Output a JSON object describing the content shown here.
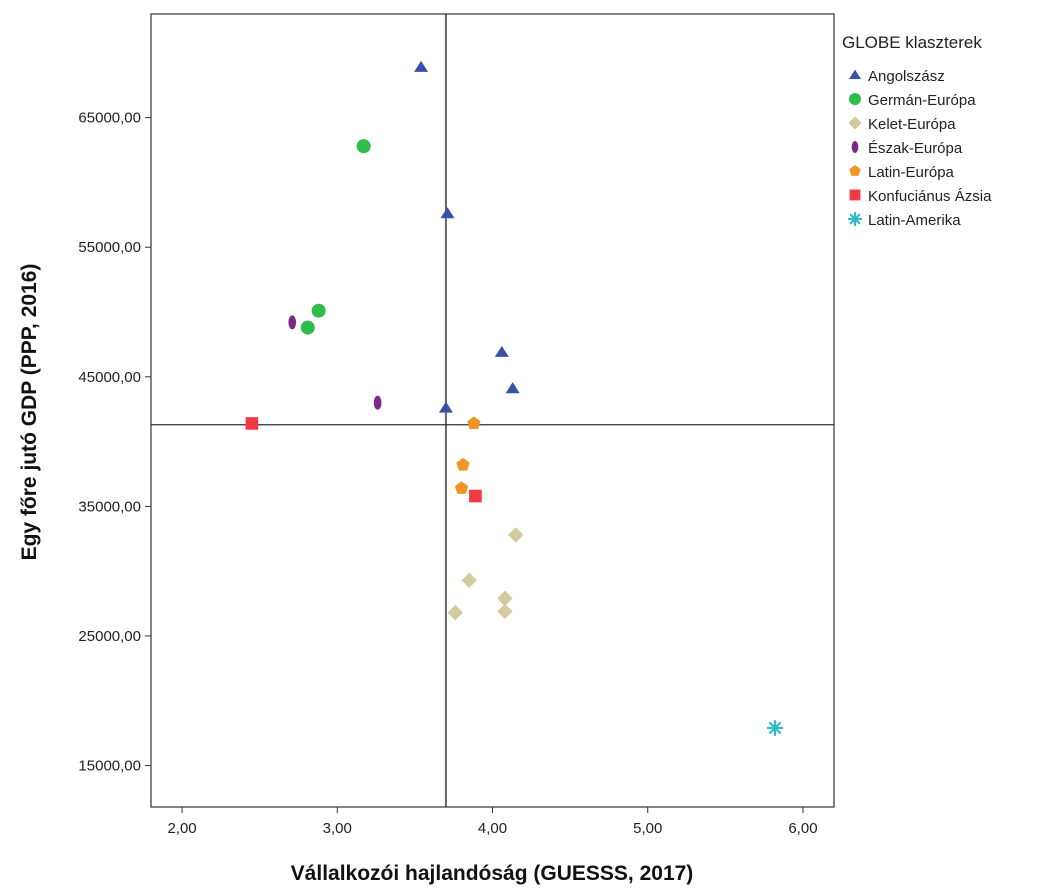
{
  "chart_data": {
    "type": "scatter",
    "xlabel": "Vállalkozói hajlandóság (GUESSS, 2017)",
    "ylabel": "Egy főre jutó GDP (PPP, 2016)",
    "xlim": [
      1.8,
      6.2
    ],
    "ylim": [
      11800,
      73000
    ],
    "xticks": [
      2,
      3,
      4,
      5,
      6
    ],
    "xtick_labels": [
      "2,00",
      "3,00",
      "4,00",
      "5,00",
      "6,00"
    ],
    "yticks": [
      15000,
      25000,
      35000,
      45000,
      55000,
      65000
    ],
    "ytick_labels": [
      "15000,00",
      "25000,00",
      "35000,00",
      "45000,00",
      "55000,00",
      "65000,00"
    ],
    "reference_lines": {
      "x": 3.7,
      "y": 41300
    },
    "grid": false,
    "legend": {
      "title": "GLOBE klaszterek",
      "placement": "right"
    },
    "series": [
      {
        "name": "Angolszász",
        "marker": "triangle",
        "color": "#3a4fa8",
        "points": [
          [
            3.54,
            68900
          ],
          [
            3.71,
            57600
          ],
          [
            4.06,
            46900
          ],
          [
            4.13,
            44100
          ],
          [
            3.7,
            42600
          ]
        ]
      },
      {
        "name": "Germán-Európa",
        "marker": "circle",
        "color": "#2ebd4a",
        "points": [
          [
            3.17,
            62800
          ],
          [
            2.88,
            50100
          ],
          [
            2.81,
            48800
          ]
        ]
      },
      {
        "name": "Kelet-Európa",
        "marker": "diamond",
        "color": "#d2cb9f",
        "points": [
          [
            4.15,
            32800
          ],
          [
            3.85,
            29300
          ],
          [
            4.08,
            27900
          ],
          [
            3.76,
            26800
          ],
          [
            4.08,
            26900
          ]
        ]
      },
      {
        "name": "Észak-Európa",
        "marker": "ellipse",
        "color": "#7a2a86",
        "points": [
          [
            2.71,
            49200
          ],
          [
            3.26,
            43000
          ]
        ]
      },
      {
        "name": "Latin-Európa",
        "marker": "pentagon",
        "color": "#f39424",
        "points": [
          [
            3.88,
            41400
          ],
          [
            3.81,
            38200
          ],
          [
            3.8,
            36400
          ]
        ]
      },
      {
        "name": "Konfuciánus Ázsia",
        "marker": "square",
        "color": "#f13a44",
        "points": [
          [
            2.45,
            41400
          ],
          [
            3.89,
            35800
          ]
        ]
      },
      {
        "name": "Latin-Amerika",
        "marker": "star",
        "color": "#31b9c6",
        "points": [
          [
            5.82,
            17900
          ]
        ]
      }
    ]
  }
}
